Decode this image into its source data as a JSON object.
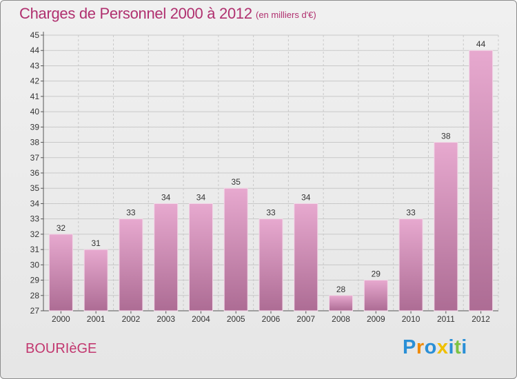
{
  "header": {
    "title": "Charges de Personnel 2000 à 2012",
    "subtitle": "(en milliers d'€)"
  },
  "footer": {
    "commune": "BOURIèGE",
    "brand": "Proxiti"
  },
  "colors": {
    "title": "#b0306f",
    "bar_top": "#e7a9cf",
    "bar_bottom": "#ad6c94",
    "grid": "#c8c8c8",
    "brand_letters": [
      "#2a8fd6",
      "#f08a00",
      "#2a8fd6",
      "#f0c000",
      "#2a8fd6",
      "#7cc242",
      "#2a8fd6"
    ]
  },
  "chart_data": {
    "type": "bar",
    "categories": [
      "2000",
      "2001",
      "2002",
      "2003",
      "2004",
      "2005",
      "2006",
      "2007",
      "2008",
      "2009",
      "2010",
      "2011",
      "2012"
    ],
    "values": [
      32,
      31,
      33,
      34,
      34,
      35,
      33,
      34,
      28,
      29,
      33,
      38,
      44
    ],
    "ylim": [
      27,
      45
    ],
    "yticks": [
      27,
      28,
      29,
      30,
      31,
      32,
      33,
      34,
      35,
      36,
      37,
      38,
      39,
      40,
      41,
      42,
      43,
      44,
      45
    ],
    "grid": true,
    "data_labels": true
  }
}
